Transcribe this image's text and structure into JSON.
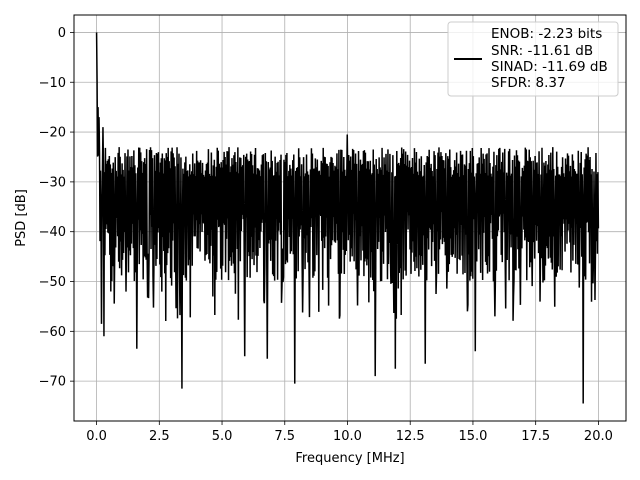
{
  "chart_data": {
    "type": "line",
    "xlabel": "Frequency [MHz]",
    "ylabel": "PSD [dB]",
    "xlim": [
      -0.9,
      21.1
    ],
    "ylim": [
      -78,
      3.5
    ],
    "xticks": [
      0.0,
      2.5,
      5.0,
      7.5,
      10.0,
      12.5,
      15.0,
      17.5,
      20.0
    ],
    "xtick_labels": [
      "0.0",
      "2.5",
      "5.0",
      "7.5",
      "10.0",
      "12.5",
      "15.0",
      "17.5",
      "20.0"
    ],
    "yticks": [
      0,
      -10,
      -20,
      -30,
      -40,
      -50,
      -60,
      -70
    ],
    "ytick_labels": [
      "0",
      "−10",
      "−20",
      "−30",
      "−40",
      "−50",
      "−60",
      "−70"
    ],
    "grid": true,
    "legend_position": "top-right",
    "series_color": "#000000",
    "legend_lines": [
      "ENOB: -2.23 bits",
      "SNR: -11.61 dB",
      "SINAD: -11.69 dB",
      "SFDR: 8.37"
    ],
    "series": [
      {
        "x_range": [
          0,
          20
        ],
        "approx_points": 1024,
        "noise_floor_db": -36,
        "upper_envelope_db": -23,
        "lower_envelope_db": -50,
        "peaks": [
          {
            "x": 0.0,
            "y": 0.0
          },
          {
            "x": 0.02,
            "y": -9.5
          },
          {
            "x": 0.05,
            "y": -15
          },
          {
            "x": 0.1,
            "y": -17
          },
          {
            "x": 0.25,
            "y": -19
          },
          {
            "x": 10.0,
            "y": -20.5
          }
        ],
        "troughs": [
          {
            "x": 0.2,
            "y": -58.5
          },
          {
            "x": 0.3,
            "y": -61
          },
          {
            "x": 1.6,
            "y": -63.5
          },
          {
            "x": 3.4,
            "y": -71.5
          },
          {
            "x": 5.9,
            "y": -65
          },
          {
            "x": 6.8,
            "y": -65.5
          },
          {
            "x": 7.9,
            "y": -70.5
          },
          {
            "x": 11.1,
            "y": -69
          },
          {
            "x": 11.9,
            "y": -67.5
          },
          {
            "x": 13.1,
            "y": -66.5
          },
          {
            "x": 15.1,
            "y": -64
          },
          {
            "x": 19.4,
            "y": -74.5
          }
        ]
      }
    ]
  }
}
